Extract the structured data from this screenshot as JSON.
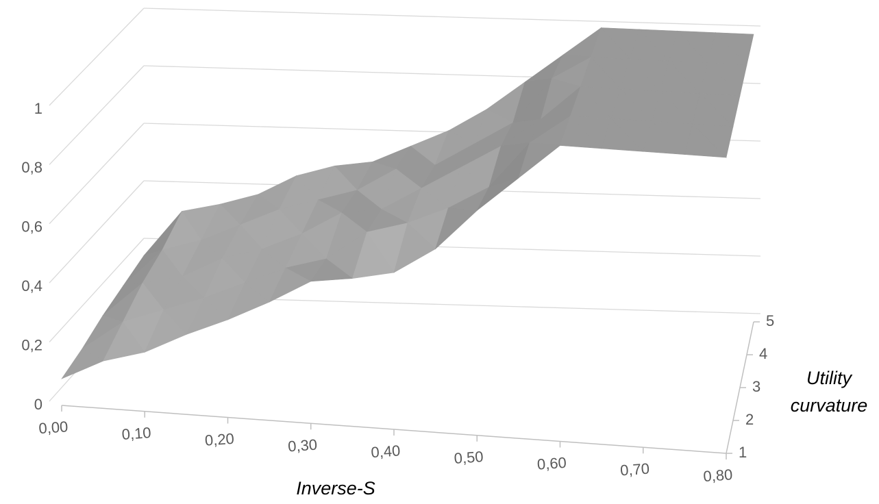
{
  "chart_data": {
    "type": "surface",
    "x_label": "Inverse-S",
    "depth_label": "Utility curvature",
    "color": "#999999",
    "x": [
      0,
      0.05,
      0.1,
      0.15,
      0.2,
      0.25,
      0.3,
      0.35,
      0.4,
      0.45,
      0.5,
      0.55,
      0.6,
      0.65,
      0.7,
      0.75,
      0.8
    ],
    "series": [
      {
        "name": "1",
        "values": [
          0.09,
          0.16,
          0.2,
          0.27,
          0.33,
          0.4,
          0.48,
          0.5,
          0.53,
          0.62,
          0.76,
          0.88,
          1,
          1,
          1,
          1,
          1
        ]
      },
      {
        "name": "2",
        "values": [
          0.1,
          0.2,
          0.25,
          0.3,
          0.36,
          0.42,
          0.46,
          0.56,
          0.6,
          0.66,
          0.74,
          0.9,
          1,
          1,
          1,
          1,
          1
        ]
      },
      {
        "name": "3",
        "values": [
          0.12,
          0.24,
          0.27,
          0.34,
          0.38,
          0.44,
          0.52,
          0.54,
          0.62,
          0.7,
          0.78,
          0.88,
          1,
          1,
          1,
          1,
          1
        ]
      },
      {
        "name": "4",
        "values": [
          0.13,
          0.26,
          0.3,
          0.36,
          0.42,
          0.46,
          0.5,
          0.58,
          0.6,
          0.68,
          0.76,
          0.92,
          1,
          1,
          1,
          1,
          1
        ]
      },
      {
        "name": "5",
        "values": [
          0.14,
          0.3,
          0.33,
          0.37,
          0.44,
          0.48,
          0.5,
          0.56,
          0.62,
          0.7,
          0.8,
          0.9,
          1,
          1,
          1,
          1,
          1
        ]
      }
    ],
    "xlim": [
      0,
      0.8
    ],
    "xticks": [
      {
        "value": 0,
        "label": "0,00"
      },
      {
        "value": 0.1,
        "label": "0,10"
      },
      {
        "value": 0.2,
        "label": "0,20"
      },
      {
        "value": 0.3,
        "label": "0,30"
      },
      {
        "value": 0.4,
        "label": "0,40"
      },
      {
        "value": 0.5,
        "label": "0,50"
      },
      {
        "value": 0.6,
        "label": "0,60"
      },
      {
        "value": 0.7,
        "label": "0,70"
      },
      {
        "value": 0.8,
        "label": "0,80"
      }
    ],
    "zlim": [
      0,
      1
    ],
    "zticks": [
      0,
      {
        "value": 0.2,
        "label": "0,2"
      },
      {
        "value": 0.4,
        "label": "0,4"
      },
      {
        "value": 0.6,
        "label": "0,6"
      },
      {
        "value": 0.8,
        "label": "0,8"
      },
      1
    ],
    "depthlim": [
      1,
      5
    ],
    "grid": true
  }
}
